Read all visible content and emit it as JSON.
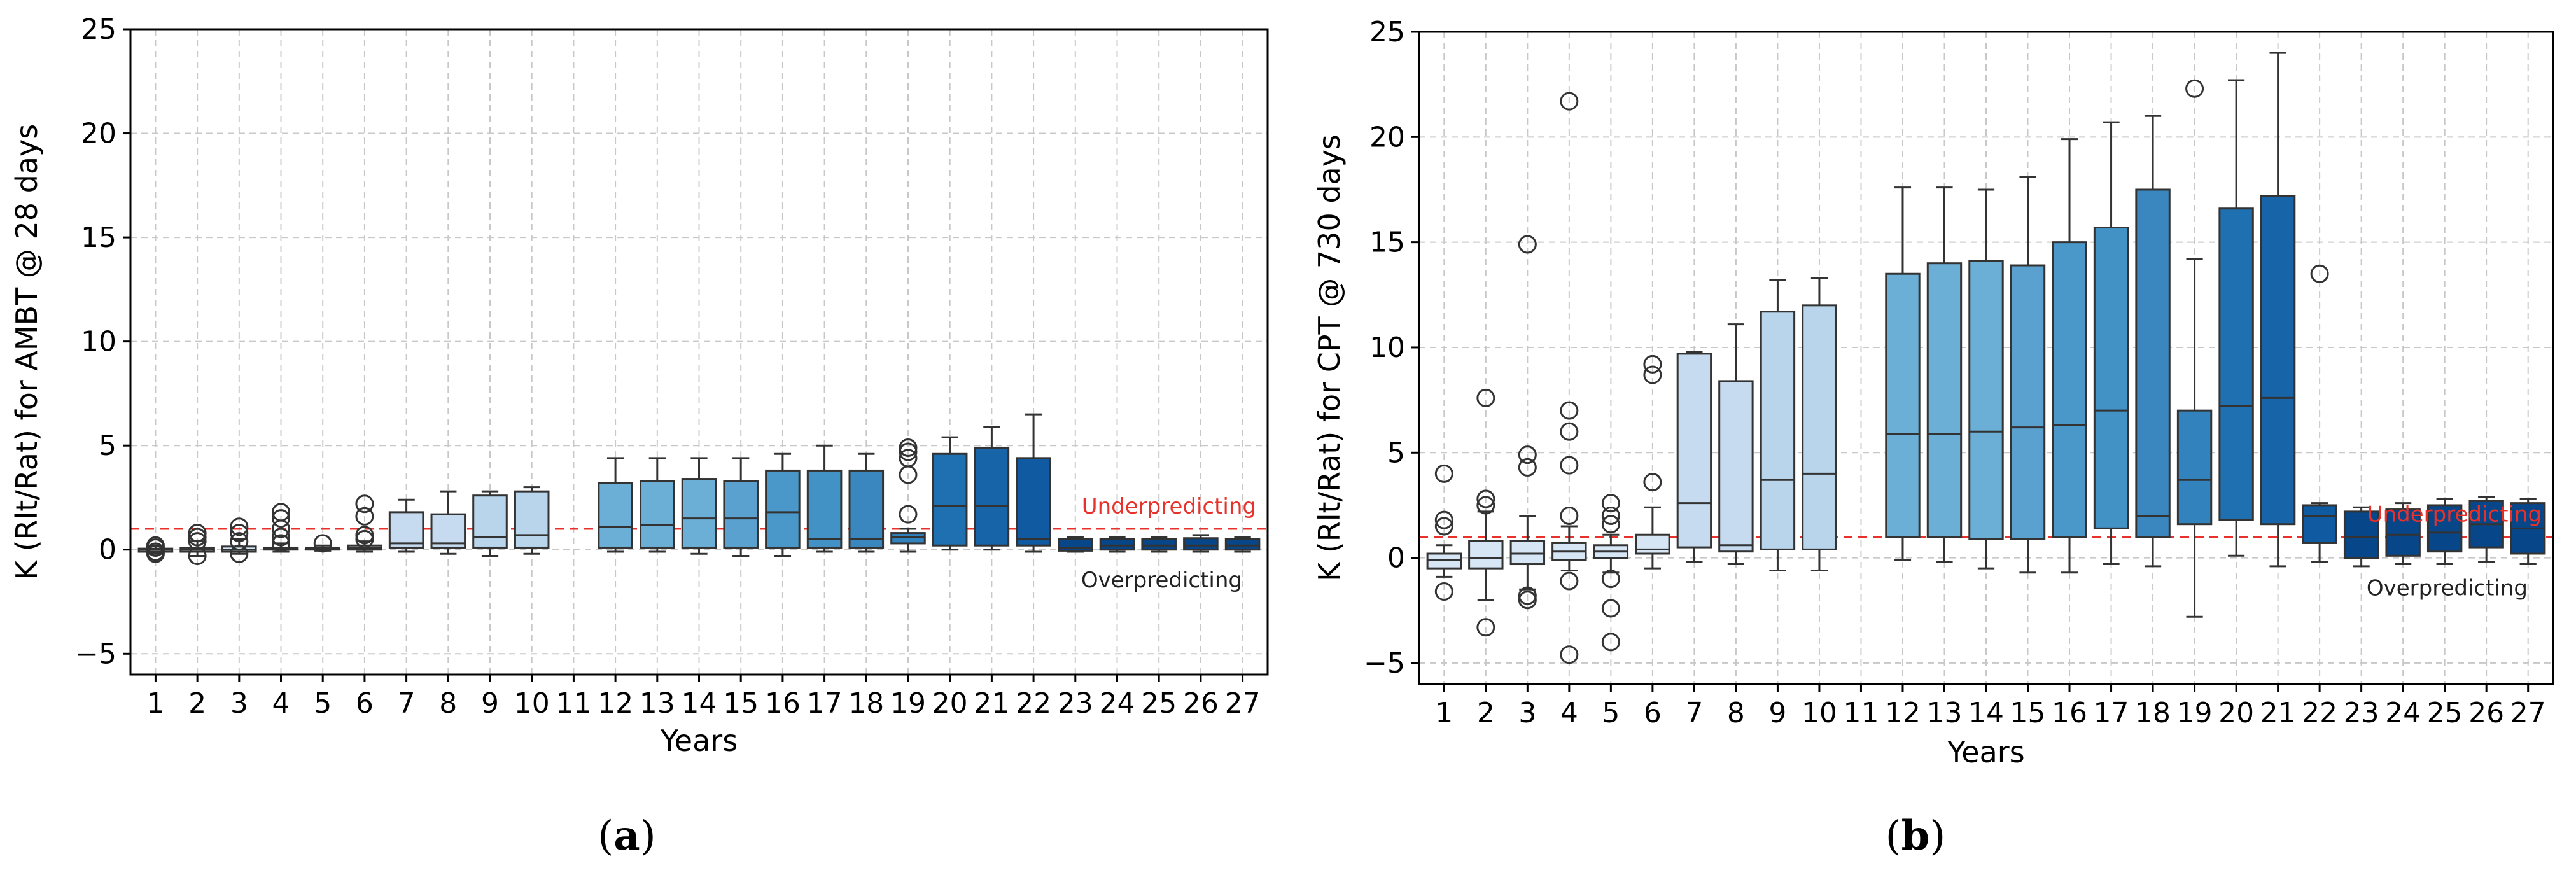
{
  "chart_data": [
    {
      "type": "box",
      "panel_label": "(a)",
      "xlabel": "Years",
      "ylabel": "K (Rlt/Rat) for AMBT @ 28 days",
      "ylim": [
        -6,
        25
      ],
      "yticks": [
        -5,
        0,
        5,
        10,
        15,
        20,
        25
      ],
      "ytick_labels": [
        "−5",
        "0",
        "5",
        "10",
        "15",
        "20",
        "25"
      ],
      "categories": [
        "1",
        "2",
        "3",
        "4",
        "5",
        "6",
        "7",
        "8",
        "9",
        "10",
        "11",
        "12",
        "13",
        "14",
        "15",
        "16",
        "17",
        "18",
        "19",
        "20",
        "21",
        "22",
        "23",
        "24",
        "25",
        "26",
        "27"
      ],
      "grid": true,
      "reference_line": {
        "y": 1,
        "color": "#e8312a",
        "style": "dashed"
      },
      "annotations": {
        "above": "Underpredicting",
        "below": "Overpredicting"
      },
      "annotation_colors": {
        "above": "#e8312a",
        "below": "#222222"
      },
      "box_colors": [
        "#d6e6f4",
        "#d6e6f4",
        "#d6e6f4",
        "#d6e6f4",
        "#d6e6f4",
        "#d6e6f4",
        "#c6dbef",
        "#c6dbef",
        "#b8d5eb",
        "#b8d5eb",
        "#b8d5eb",
        "#6baed6",
        "#6baed6",
        "#6baed6",
        "#5aa1cf",
        "#4a97c9",
        "#4292c6",
        "#3a87bf",
        "#3182bd",
        "#1f70b0",
        "#1764a8",
        "#0f5aa0",
        "#08468a",
        "#08468a",
        "#08468a",
        "#08468a",
        "#08468a"
      ],
      "boxes": [
        {
          "min": -0.2,
          "q1": -0.1,
          "median": 0,
          "q3": 0.05,
          "max": 0.2,
          "outliers": [
            -0.2,
            -0.1,
            0.1,
            0.2
          ]
        },
        {
          "min": -0.3,
          "q1": -0.1,
          "median": 0,
          "q3": 0.1,
          "max": 0.4,
          "outliers": [
            -0.3,
            0.4,
            0.6,
            0.8
          ]
        },
        {
          "min": -0.2,
          "q1": -0.1,
          "median": 0,
          "q3": 0.15,
          "max": 0.5,
          "outliers": [
            -0.2,
            0.4,
            0.8,
            1.1
          ]
        },
        {
          "min": -0.1,
          "q1": 0,
          "median": 0.05,
          "q3": 0.1,
          "max": 0.3,
          "outliers": [
            0.3,
            0.6,
            1.0,
            1.5,
            1.8
          ]
        },
        {
          "min": -0.05,
          "q1": 0,
          "median": 0.05,
          "q3": 0.1,
          "max": 0.2,
          "outliers": [
            0.3
          ]
        },
        {
          "min": -0.1,
          "q1": 0,
          "median": 0.1,
          "q3": 0.2,
          "max": 0.4,
          "outliers": [
            0.5,
            0.7,
            1.6,
            2.2
          ]
        },
        {
          "min": -0.1,
          "q1": 0.1,
          "median": 0.3,
          "q3": 1.8,
          "max": 2.4,
          "outliers": []
        },
        {
          "min": -0.2,
          "q1": 0.1,
          "median": 0.3,
          "q3": 1.7,
          "max": 2.8,
          "outliers": []
        },
        {
          "min": -0.3,
          "q1": 0.1,
          "median": 0.6,
          "q3": 2.6,
          "max": 2.8,
          "outliers": []
        },
        {
          "min": -0.2,
          "q1": 0.1,
          "median": 0.7,
          "q3": 2.8,
          "max": 3.0,
          "outliers": []
        },
        null,
        {
          "min": -0.1,
          "q1": 0.1,
          "median": 1.1,
          "q3": 3.2,
          "max": 4.4,
          "outliers": []
        },
        {
          "min": -0.1,
          "q1": 0.1,
          "median": 1.2,
          "q3": 3.3,
          "max": 4.4,
          "outliers": []
        },
        {
          "min": -0.2,
          "q1": 0.1,
          "median": 1.5,
          "q3": 3.4,
          "max": 4.4,
          "outliers": []
        },
        {
          "min": -0.3,
          "q1": 0.1,
          "median": 1.5,
          "q3": 3.3,
          "max": 4.4,
          "outliers": []
        },
        {
          "min": -0.3,
          "q1": 0.1,
          "median": 1.8,
          "q3": 3.8,
          "max": 4.6,
          "outliers": []
        },
        {
          "min": -0.1,
          "q1": 0.1,
          "median": 0.5,
          "q3": 3.8,
          "max": 5.0,
          "outliers": []
        },
        {
          "min": -0.1,
          "q1": 0.1,
          "median": 0.5,
          "q3": 3.8,
          "max": 4.6,
          "outliers": []
        },
        {
          "min": -0.1,
          "q1": 0.3,
          "median": 0.6,
          "q3": 0.8,
          "max": 1.0,
          "outliers": [
            1.7,
            3.6,
            4.4,
            4.7,
            4.9
          ]
        },
        {
          "min": 0,
          "q1": 0.2,
          "median": 2.1,
          "q3": 4.6,
          "max": 5.4,
          "outliers": []
        },
        {
          "min": 0,
          "q1": 0.2,
          "median": 2.1,
          "q3": 4.9,
          "max": 5.9,
          "outliers": []
        },
        {
          "min": -0.1,
          "q1": 0.2,
          "median": 0.5,
          "q3": 4.4,
          "max": 6.5,
          "outliers": []
        },
        {
          "min": -0.1,
          "q1": -0.05,
          "median": 0.1,
          "q3": 0.5,
          "max": 0.6,
          "outliers": []
        },
        {
          "min": -0.1,
          "q1": 0,
          "median": 0.2,
          "q3": 0.5,
          "max": 0.6,
          "outliers": []
        },
        {
          "min": -0.1,
          "q1": 0,
          "median": 0.2,
          "q3": 0.5,
          "max": 0.6,
          "outliers": []
        },
        {
          "min": -0.1,
          "q1": 0,
          "median": 0.2,
          "q3": 0.55,
          "max": 0.7,
          "outliers": []
        },
        {
          "min": -0.1,
          "q1": 0,
          "median": 0.2,
          "q3": 0.5,
          "max": 0.6,
          "outliers": []
        }
      ]
    },
    {
      "type": "box",
      "panel_label": "(b)",
      "xlabel": "Years",
      "ylabel": "K (Rlt/Rat) for CPT @ 730 days",
      "ylim": [
        -6,
        25
      ],
      "yticks": [
        -5,
        0,
        5,
        10,
        15,
        20,
        25
      ],
      "ytick_labels": [
        "−5",
        "0",
        "5",
        "10",
        "15",
        "20",
        "25"
      ],
      "categories": [
        "1",
        "2",
        "3",
        "4",
        "5",
        "6",
        "7",
        "8",
        "9",
        "10",
        "11",
        "12",
        "13",
        "14",
        "15",
        "16",
        "17",
        "18",
        "19",
        "20",
        "21",
        "22",
        "23",
        "24",
        "25",
        "26",
        "27"
      ],
      "grid": true,
      "reference_line": {
        "y": 1,
        "color": "#e8312a",
        "style": "dashed"
      },
      "annotations": {
        "above": "Underpredicting",
        "below": "Overpredicting"
      },
      "annotation_colors": {
        "above": "#e8312a",
        "below": "#222222"
      },
      "box_colors": [
        "#d6e6f4",
        "#d6e6f4",
        "#d6e6f4",
        "#d6e6f4",
        "#d6e6f4",
        "#d6e6f4",
        "#c6dbef",
        "#c6dbef",
        "#b8d5eb",
        "#b8d5eb",
        "#b8d5eb",
        "#6baed6",
        "#6baed6",
        "#6baed6",
        "#5aa1cf",
        "#4a97c9",
        "#4292c6",
        "#3a87bf",
        "#3182bd",
        "#1f70b0",
        "#1764a8",
        "#0f5aa0",
        "#08468a",
        "#08468a",
        "#08468a",
        "#08468a",
        "#08468a"
      ],
      "boxes": [
        {
          "min": -0.9,
          "q1": -0.5,
          "median": -0.1,
          "q3": 0.2,
          "max": 0.6,
          "outliers": [
            -1.6,
            1.5,
            1.8,
            4.0
          ]
        },
        {
          "min": -2.0,
          "q1": -0.5,
          "median": 0,
          "q3": 0.8,
          "max": 2.2,
          "outliers": [
            -3.3,
            2.5,
            2.8,
            7.6
          ]
        },
        {
          "min": -1.5,
          "q1": -0.3,
          "median": 0.2,
          "q3": 0.8,
          "max": 2.0,
          "outliers": [
            -2.0,
            -1.8,
            4.3,
            4.9,
            14.9
          ]
        },
        {
          "min": -0.6,
          "q1": -0.1,
          "median": 0.3,
          "q3": 0.7,
          "max": 1.5,
          "outliers": [
            -4.6,
            -1.1,
            2.0,
            4.4,
            6.0,
            7.0,
            21.7
          ]
        },
        {
          "min": -0.7,
          "q1": 0,
          "median": 0.3,
          "q3": 0.6,
          "max": 1.1,
          "outliers": [
            -4.0,
            -2.4,
            -1.0,
            1.6,
            2.0,
            2.6
          ]
        },
        {
          "min": -0.5,
          "q1": 0.2,
          "median": 0.4,
          "q3": 1.1,
          "max": 2.4,
          "outliers": [
            3.6,
            8.7,
            9.2
          ]
        },
        {
          "min": -0.2,
          "q1": 0.5,
          "median": 2.6,
          "q3": 9.7,
          "max": 9.8,
          "outliers": []
        },
        {
          "min": -0.3,
          "q1": 0.3,
          "median": 0.6,
          "q3": 8.4,
          "max": 11.1,
          "outliers": []
        },
        {
          "min": -0.6,
          "q1": 0.4,
          "median": 3.7,
          "q3": 11.7,
          "max": 13.2,
          "outliers": []
        },
        {
          "min": -0.6,
          "q1": 0.4,
          "median": 4.0,
          "q3": 12.0,
          "max": 13.3,
          "outliers": []
        },
        null,
        {
          "min": -0.1,
          "q1": 1.0,
          "median": 5.9,
          "q3": 13.5,
          "max": 17.6,
          "outliers": []
        },
        {
          "min": -0.2,
          "q1": 1.0,
          "median": 5.9,
          "q3": 14.0,
          "max": 17.6,
          "outliers": []
        },
        {
          "min": -0.5,
          "q1": 0.9,
          "median": 6.0,
          "q3": 14.1,
          "max": 17.5,
          "outliers": []
        },
        {
          "min": -0.7,
          "q1": 0.9,
          "median": 6.2,
          "q3": 13.9,
          "max": 18.1,
          "outliers": []
        },
        {
          "min": -0.7,
          "q1": 1.0,
          "median": 6.3,
          "q3": 15.0,
          "max": 19.9,
          "outliers": []
        },
        {
          "min": -0.3,
          "q1": 1.4,
          "median": 7.0,
          "q3": 15.7,
          "max": 20.7,
          "outliers": []
        },
        {
          "min": -0.4,
          "q1": 1.0,
          "median": 2.0,
          "q3": 17.5,
          "max": 21.0,
          "outliers": []
        },
        {
          "min": -2.8,
          "q1": 1.6,
          "median": 3.7,
          "q3": 7.0,
          "max": 14.2,
          "outliers": [
            22.3
          ]
        },
        {
          "min": 0.1,
          "q1": 1.8,
          "median": 7.2,
          "q3": 16.6,
          "max": 22.7,
          "outliers": []
        },
        {
          "min": -0.4,
          "q1": 1.6,
          "median": 7.6,
          "q3": 17.2,
          "max": 24.0,
          "outliers": []
        },
        {
          "min": -0.2,
          "q1": 0.7,
          "median": 2.0,
          "q3": 2.5,
          "max": 2.6,
          "outliers": [
            13.5
          ]
        },
        {
          "min": -0.4,
          "q1": 0,
          "median": 1.0,
          "q3": 2.2,
          "max": 2.4,
          "outliers": []
        },
        {
          "min": -0.3,
          "q1": 0.1,
          "median": 1.1,
          "q3": 2.3,
          "max": 2.6,
          "outliers": []
        },
        {
          "min": -0.3,
          "q1": 0.3,
          "median": 1.2,
          "q3": 2.5,
          "max": 2.8,
          "outliers": []
        },
        {
          "min": -0.2,
          "q1": 0.5,
          "median": 1.6,
          "q3": 2.7,
          "max": 2.9,
          "outliers": []
        },
        {
          "min": -0.3,
          "q1": 0.2,
          "median": 1.4,
          "q3": 2.6,
          "max": 2.8,
          "outliers": []
        }
      ]
    }
  ]
}
